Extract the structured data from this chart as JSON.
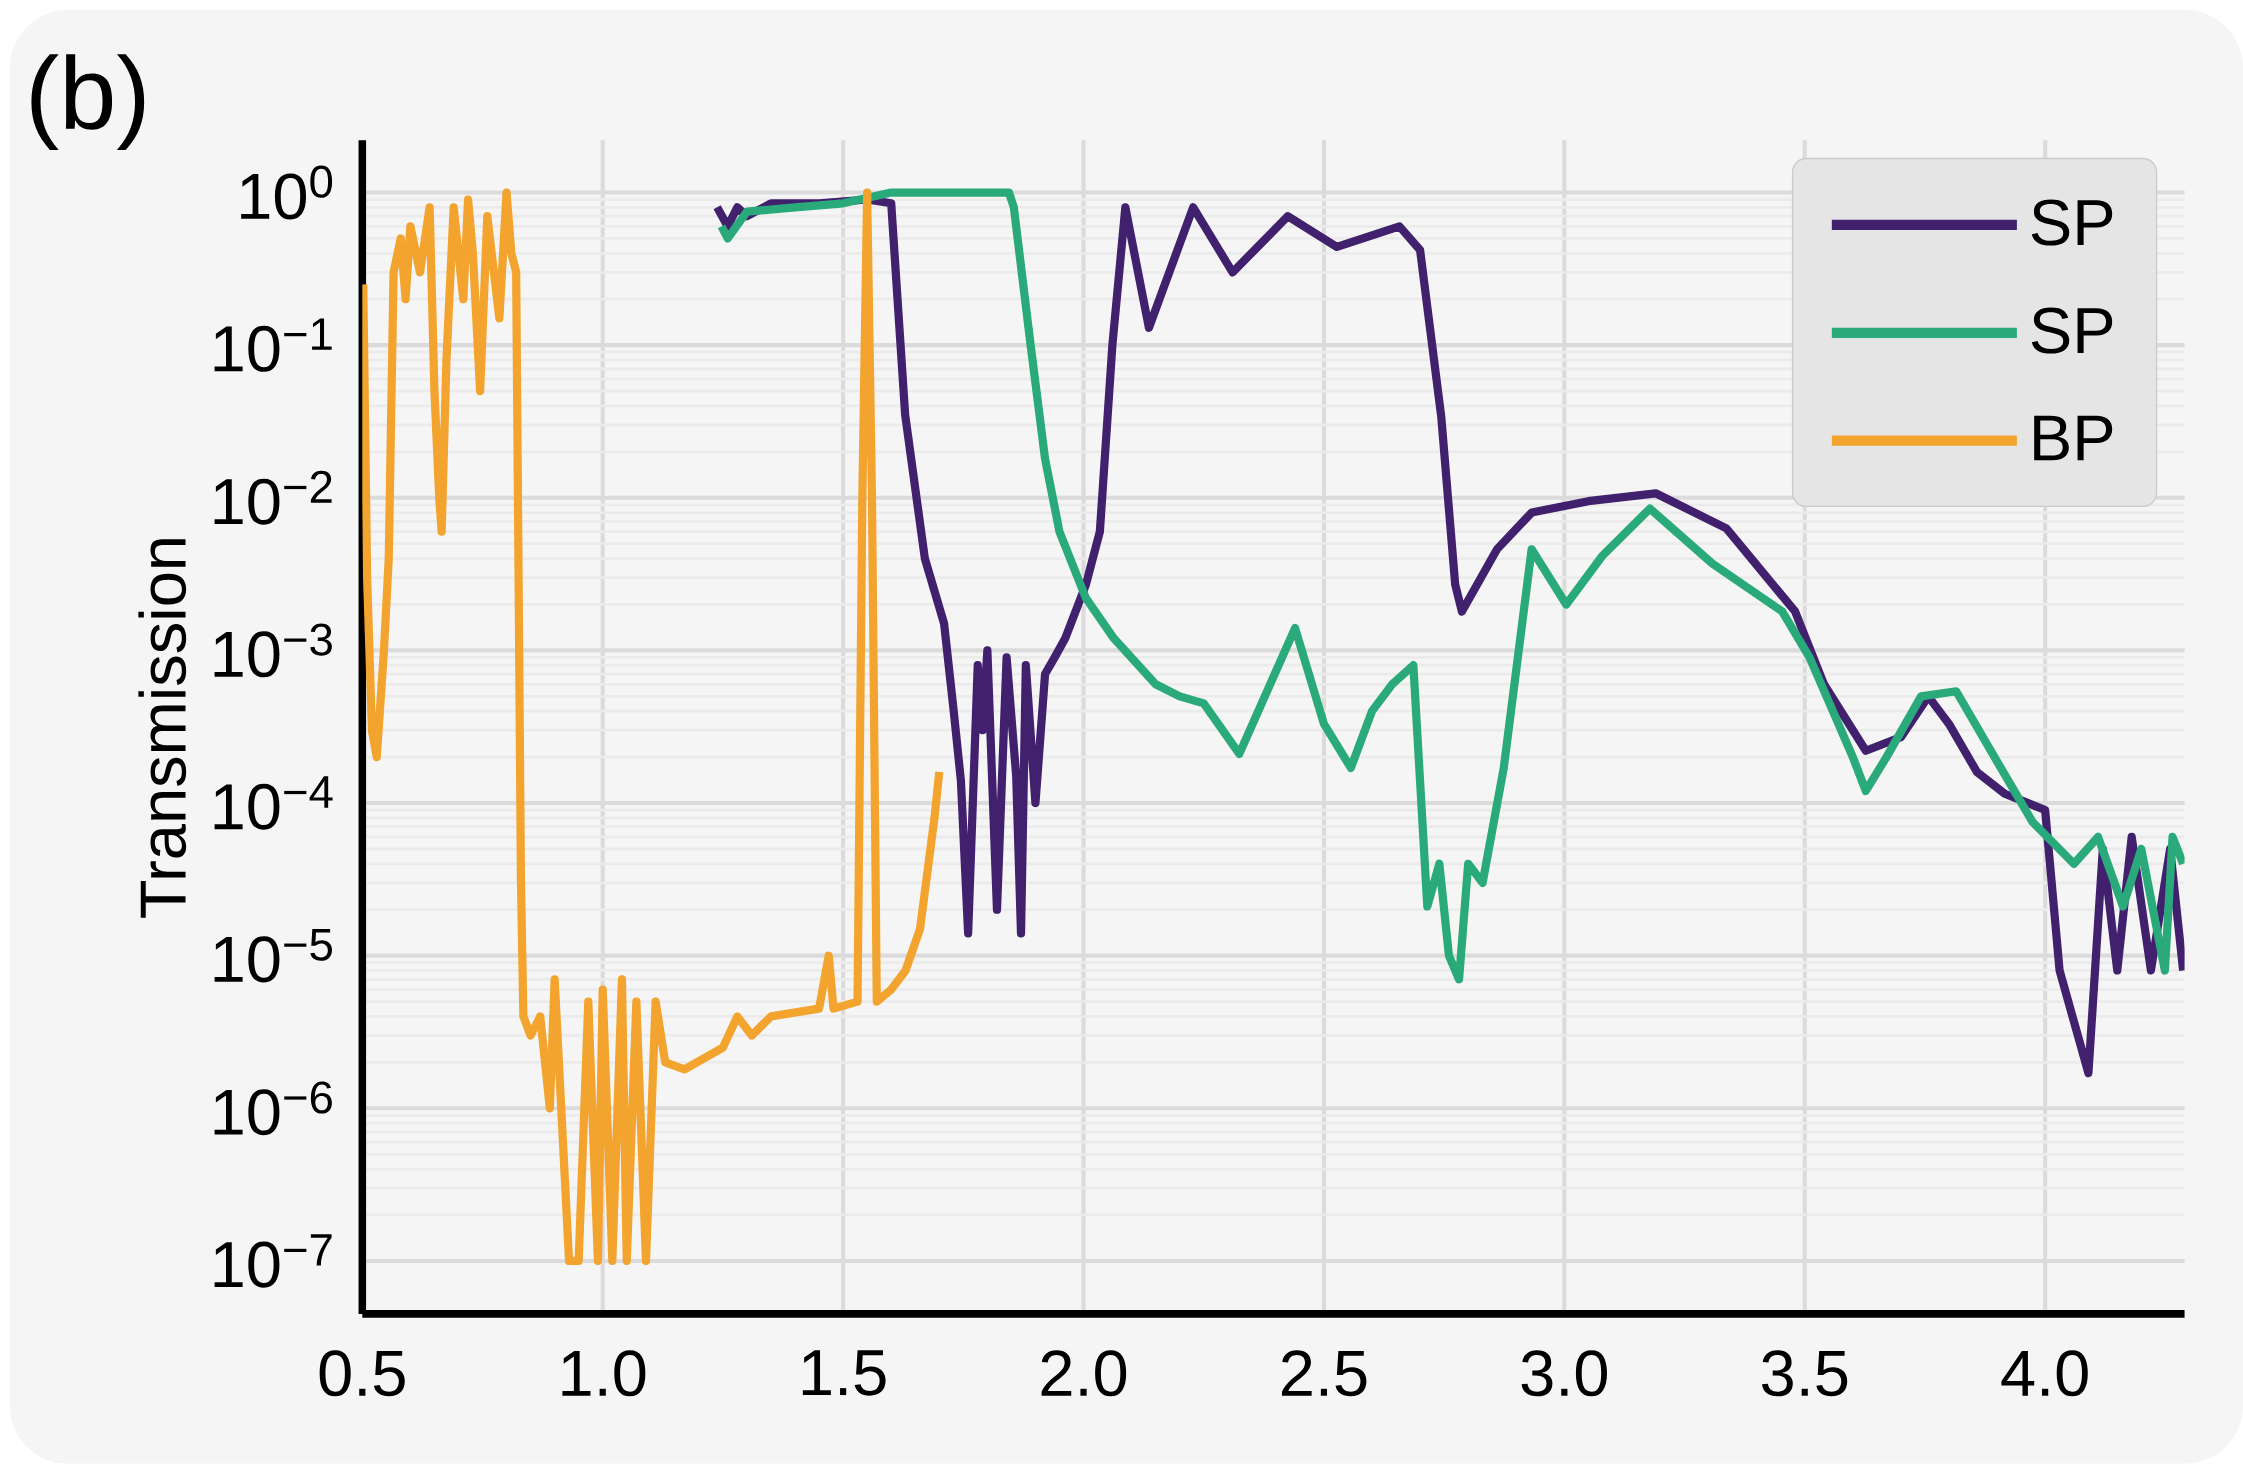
{
  "chart_data": {
    "type": "line",
    "ylabel": "Transmission",
    "log": "y",
    "grid": true,
    "legend": "top right",
    "annotations": [
      "(b)"
    ],
    "xlim": [
      0.5,
      4.29
    ],
    "ylim": [
      4.5e-08,
      2.2
    ],
    "xticks": [
      0.5,
      {
        "value": 1,
        "label": "1.0"
      },
      1.5,
      {
        "value": 2,
        "label": "2.0"
      },
      2.5,
      {
        "value": 3,
        "label": "3.0"
      },
      3.5,
      {
        "value": 4,
        "label": "4.0"
      }
    ],
    "yticks": [
      {
        "value": 1e-07,
        "label": "10$^{−7}$"
      },
      {
        "value": 1e-06,
        "label": "10$^{−6}$"
      },
      {
        "value": 1e-05,
        "label": "10$^{−5}$"
      },
      {
        "value": 0.0001,
        "label": "10$^{−4}$"
      },
      {
        "value": 0.001,
        "label": "10$^{−3}$"
      },
      {
        "value": 0.01,
        "label": "10$^{−2}$"
      },
      {
        "value": 0.1,
        "label": "10$^{−1}$"
      },
      {
        "value": 1,
        "label": "10$^{0}$"
      }
    ],
    "series": [
      {
        "name": "SP",
        "color": "#41206e",
        "x": [
          1.238,
          1.26,
          1.28,
          1.3,
          1.35,
          1.45,
          1.55,
          1.6,
          1.629,
          1.67,
          1.71,
          1.73,
          1.745,
          1.76,
          1.78,
          1.79,
          1.8,
          1.82,
          1.84,
          1.86,
          1.87,
          1.88,
          1.9,
          1.92,
          1.94,
          1.962,
          2.005,
          2.034,
          2.06,
          2.087,
          2.136,
          2.228,
          2.31,
          2.425,
          2.527,
          2.657,
          2.7,
          2.744,
          2.773,
          2.787,
          2.86,
          2.932,
          3.05,
          3.19,
          3.337,
          3.48,
          3.54,
          3.627,
          3.7,
          3.757,
          3.8,
          3.858,
          3.916,
          4.0,
          4.03,
          4.09,
          4.12,
          4.15,
          4.18,
          4.22,
          4.26,
          4.287
        ],
        "values": [
          0.8,
          0.6,
          0.8,
          0.7,
          0.85,
          0.85,
          0.9,
          0.85,
          0.035,
          0.004,
          0.0015,
          0.0004,
          0.00014,
          1.4e-05,
          0.0008,
          0.0003,
          0.001,
          2e-05,
          0.0009,
          0.00015,
          1.4e-05,
          0.0008,
          0.0001,
          0.0007,
          0.0009,
          0.0012,
          0.0027,
          0.006,
          0.1,
          0.8,
          0.13,
          0.8,
          0.3,
          0.7,
          0.44,
          0.6,
          0.42,
          0.034,
          0.0027,
          0.0018,
          0.0046,
          0.008,
          0.0095,
          0.0107,
          0.0063,
          0.0018,
          0.0006,
          0.00022,
          0.00027,
          0.0005,
          0.00033,
          0.00016,
          0.000115,
          9e-05,
          8e-06,
          1.7e-06,
          5e-05,
          8e-06,
          6e-05,
          8e-06,
          5e-05,
          8e-06
        ]
      },
      {
        "name": "SP",
        "color": "#2aaa7a",
        "x": [
          1.247,
          1.26,
          1.3,
          1.4,
          1.5,
          1.6,
          1.7,
          1.8,
          1.845,
          1.855,
          1.89,
          1.92,
          1.95,
          2.005,
          2.063,
          2.15,
          2.2,
          2.25,
          2.324,
          2.44,
          2.5,
          2.556,
          2.6,
          2.642,
          2.686,
          2.715,
          2.74,
          2.76,
          2.781,
          2.8,
          2.83,
          2.874,
          2.932,
          3.004,
          3.08,
          3.178,
          3.308,
          3.453,
          3.51,
          3.6,
          3.627,
          3.67,
          3.742,
          3.815,
          3.887,
          3.974,
          4.06,
          4.11,
          4.162,
          4.2,
          4.249,
          4.265,
          4.287
        ],
        "values": [
          0.6,
          0.5,
          0.75,
          0.8,
          0.85,
          1.0,
          1.0,
          1.0,
          1.0,
          0.8,
          0.1,
          0.018,
          0.006,
          0.0022,
          0.0012,
          0.0006,
          0.0005,
          0.00045,
          0.00021,
          0.0014,
          0.00033,
          0.00017,
          0.0004,
          0.0006,
          0.0008,
          2.1e-05,
          4e-05,
          1e-05,
          7e-06,
          4e-05,
          3e-05,
          0.00017,
          0.0046,
          0.002,
          0.0042,
          0.0085,
          0.0037,
          0.0018,
          0.0009,
          0.0002,
          0.00012,
          0.0002,
          0.0005,
          0.00054,
          0.00022,
          7.5e-05,
          4e-05,
          6e-05,
          2.1e-05,
          5e-05,
          8e-06,
          6e-05,
          4e-05
        ]
      },
      {
        "name": "BP",
        "color": "#f2a42f",
        "x": [
          0.502,
          0.51,
          0.52,
          0.53,
          0.545,
          0.555,
          0.565,
          0.58,
          0.59,
          0.6,
          0.62,
          0.64,
          0.65,
          0.66,
          0.665,
          0.675,
          0.69,
          0.71,
          0.72,
          0.73,
          0.745,
          0.76,
          0.785,
          0.8,
          0.81,
          0.82,
          0.83,
          0.835,
          0.85,
          0.87,
          0.89,
          0.9,
          0.93,
          0.95,
          0.97,
          0.99,
          1.0,
          1.02,
          1.04,
          1.05,
          1.07,
          1.09,
          1.11,
          1.13,
          1.17,
          1.25,
          1.28,
          1.31,
          1.35,
          1.45,
          1.47,
          1.48,
          1.53,
          1.54,
          1.55,
          1.56,
          1.57,
          1.6,
          1.63,
          1.66,
          1.69,
          1.7
        ],
        "values": [
          0.25,
          0.003,
          0.0003,
          0.0002,
          0.001,
          0.004,
          0.3,
          0.5,
          0.2,
          0.6,
          0.3,
          0.8,
          0.05,
          0.01,
          0.006,
          0.08,
          0.8,
          0.2,
          0.9,
          0.4,
          0.05,
          0.7,
          0.15,
          1.0,
          0.4,
          0.3,
          3e-05,
          4e-06,
          3e-06,
          4e-06,
          1e-06,
          7e-06,
          1e-07,
          1e-07,
          5e-06,
          1e-07,
          6e-06,
          1e-07,
          7e-06,
          1e-07,
          5e-06,
          1e-07,
          5e-06,
          2e-06,
          1.8e-06,
          2.5e-06,
          4e-06,
          3e-06,
          4e-06,
          4.5e-06,
          1e-05,
          4.5e-06,
          5e-06,
          0.01,
          1.0,
          0.01,
          5e-06,
          6e-06,
          8e-06,
          1.5e-05,
          8e-05,
          0.00016
        ]
      }
    ]
  }
}
